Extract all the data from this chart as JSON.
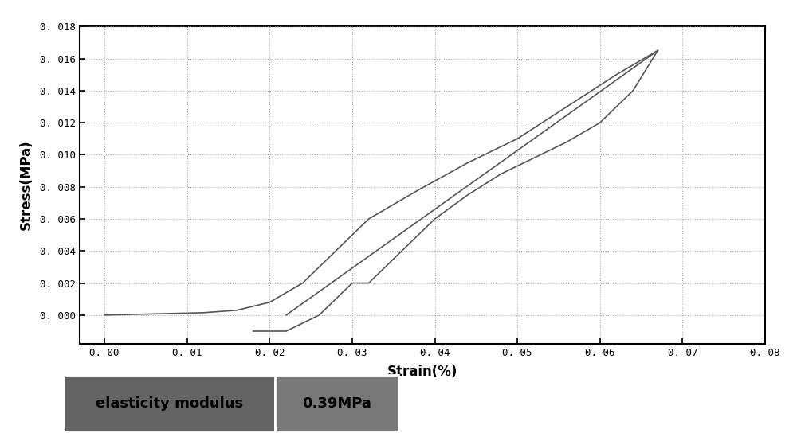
{
  "xlabel": "Strain(%)",
  "ylabel": "Stress(MPa)",
  "xlim": [
    -0.003,
    0.08
  ],
  "ylim": [
    -0.0018,
    0.018
  ],
  "xticks": [
    0.0,
    0.01,
    0.02,
    0.03,
    0.04,
    0.05,
    0.06,
    0.07,
    0.08
  ],
  "yticks": [
    0.0,
    0.002,
    0.004,
    0.006,
    0.008,
    0.01,
    0.012,
    0.014,
    0.016,
    0.018
  ],
  "line_color": "#555555",
  "background_color": "#ffffff",
  "grid_color": "#888888",
  "table_label1": "elasticity modulus",
  "table_label2": "0.39MPa",
  "table_bg1": "#646464",
  "table_bg2": "#787878",
  "loading_curve_x": [
    0.0,
    0.004,
    0.008,
    0.012,
    0.016,
    0.02,
    0.024,
    0.028,
    0.032,
    0.038,
    0.044,
    0.05,
    0.056,
    0.062,
    0.067
  ],
  "loading_curve_y": [
    0.0,
    5e-05,
    0.0001,
    0.00015,
    0.0003,
    0.0008,
    0.002,
    0.004,
    0.006,
    0.0078,
    0.0095,
    0.011,
    0.013,
    0.015,
    0.0165
  ],
  "unloading_curve_x": [
    0.067,
    0.064,
    0.06,
    0.056,
    0.052,
    0.048,
    0.044,
    0.04,
    0.036,
    0.032,
    0.03,
    0.026,
    0.022,
    0.018
  ],
  "unloading_curve_y": [
    0.0165,
    0.014,
    0.012,
    0.0108,
    0.0098,
    0.0088,
    0.0075,
    0.006,
    0.004,
    0.002,
    0.002,
    0.0,
    -0.001,
    -0.001
  ],
  "straight_line_x": [
    0.022,
    0.067
  ],
  "straight_line_y": [
    0.0,
    0.0165
  ]
}
